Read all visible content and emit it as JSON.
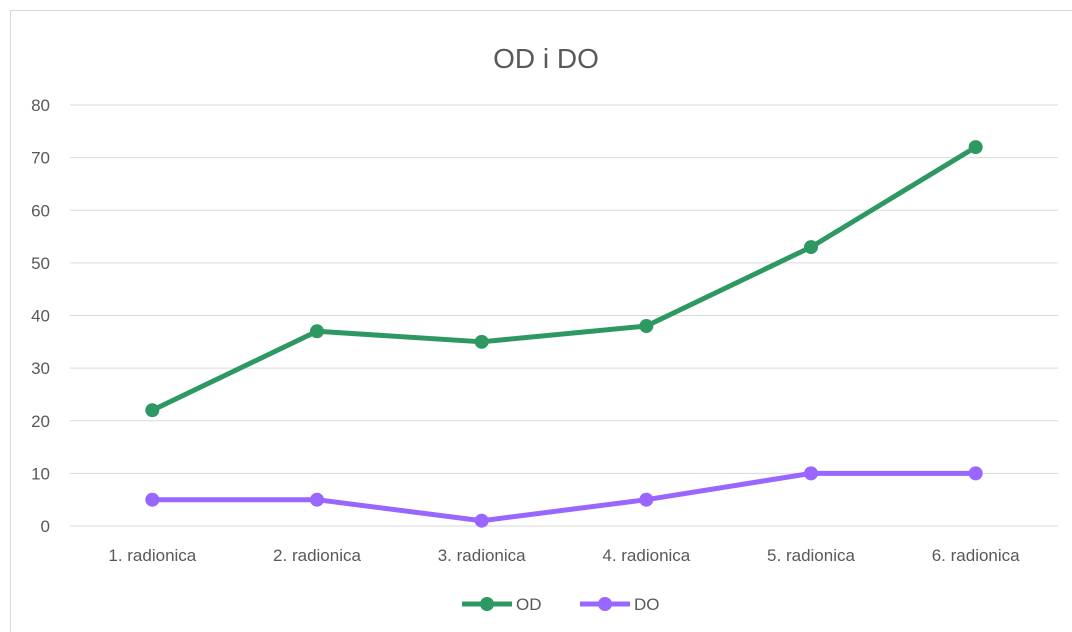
{
  "chart_data": {
    "type": "line",
    "title": "OD i DO",
    "categories": [
      "1. radionica",
      "2. radionica",
      "3. radionica",
      "4. radionica",
      "5. radionica",
      "6. radionica"
    ],
    "series": [
      {
        "name": "OD",
        "values": [
          22,
          37,
          35,
          38,
          53,
          72
        ],
        "color": "#2e9862"
      },
      {
        "name": "DO",
        "values": [
          5,
          5,
          1,
          5,
          10,
          10
        ],
        "color": "#9966ff"
      }
    ],
    "yticks": [
      "0",
      "10",
      "20",
      "30",
      "40",
      "50",
      "60",
      "70",
      "80"
    ],
    "ylim": [
      0,
      80
    ],
    "grid": true,
    "legend_position": "bottom"
  }
}
